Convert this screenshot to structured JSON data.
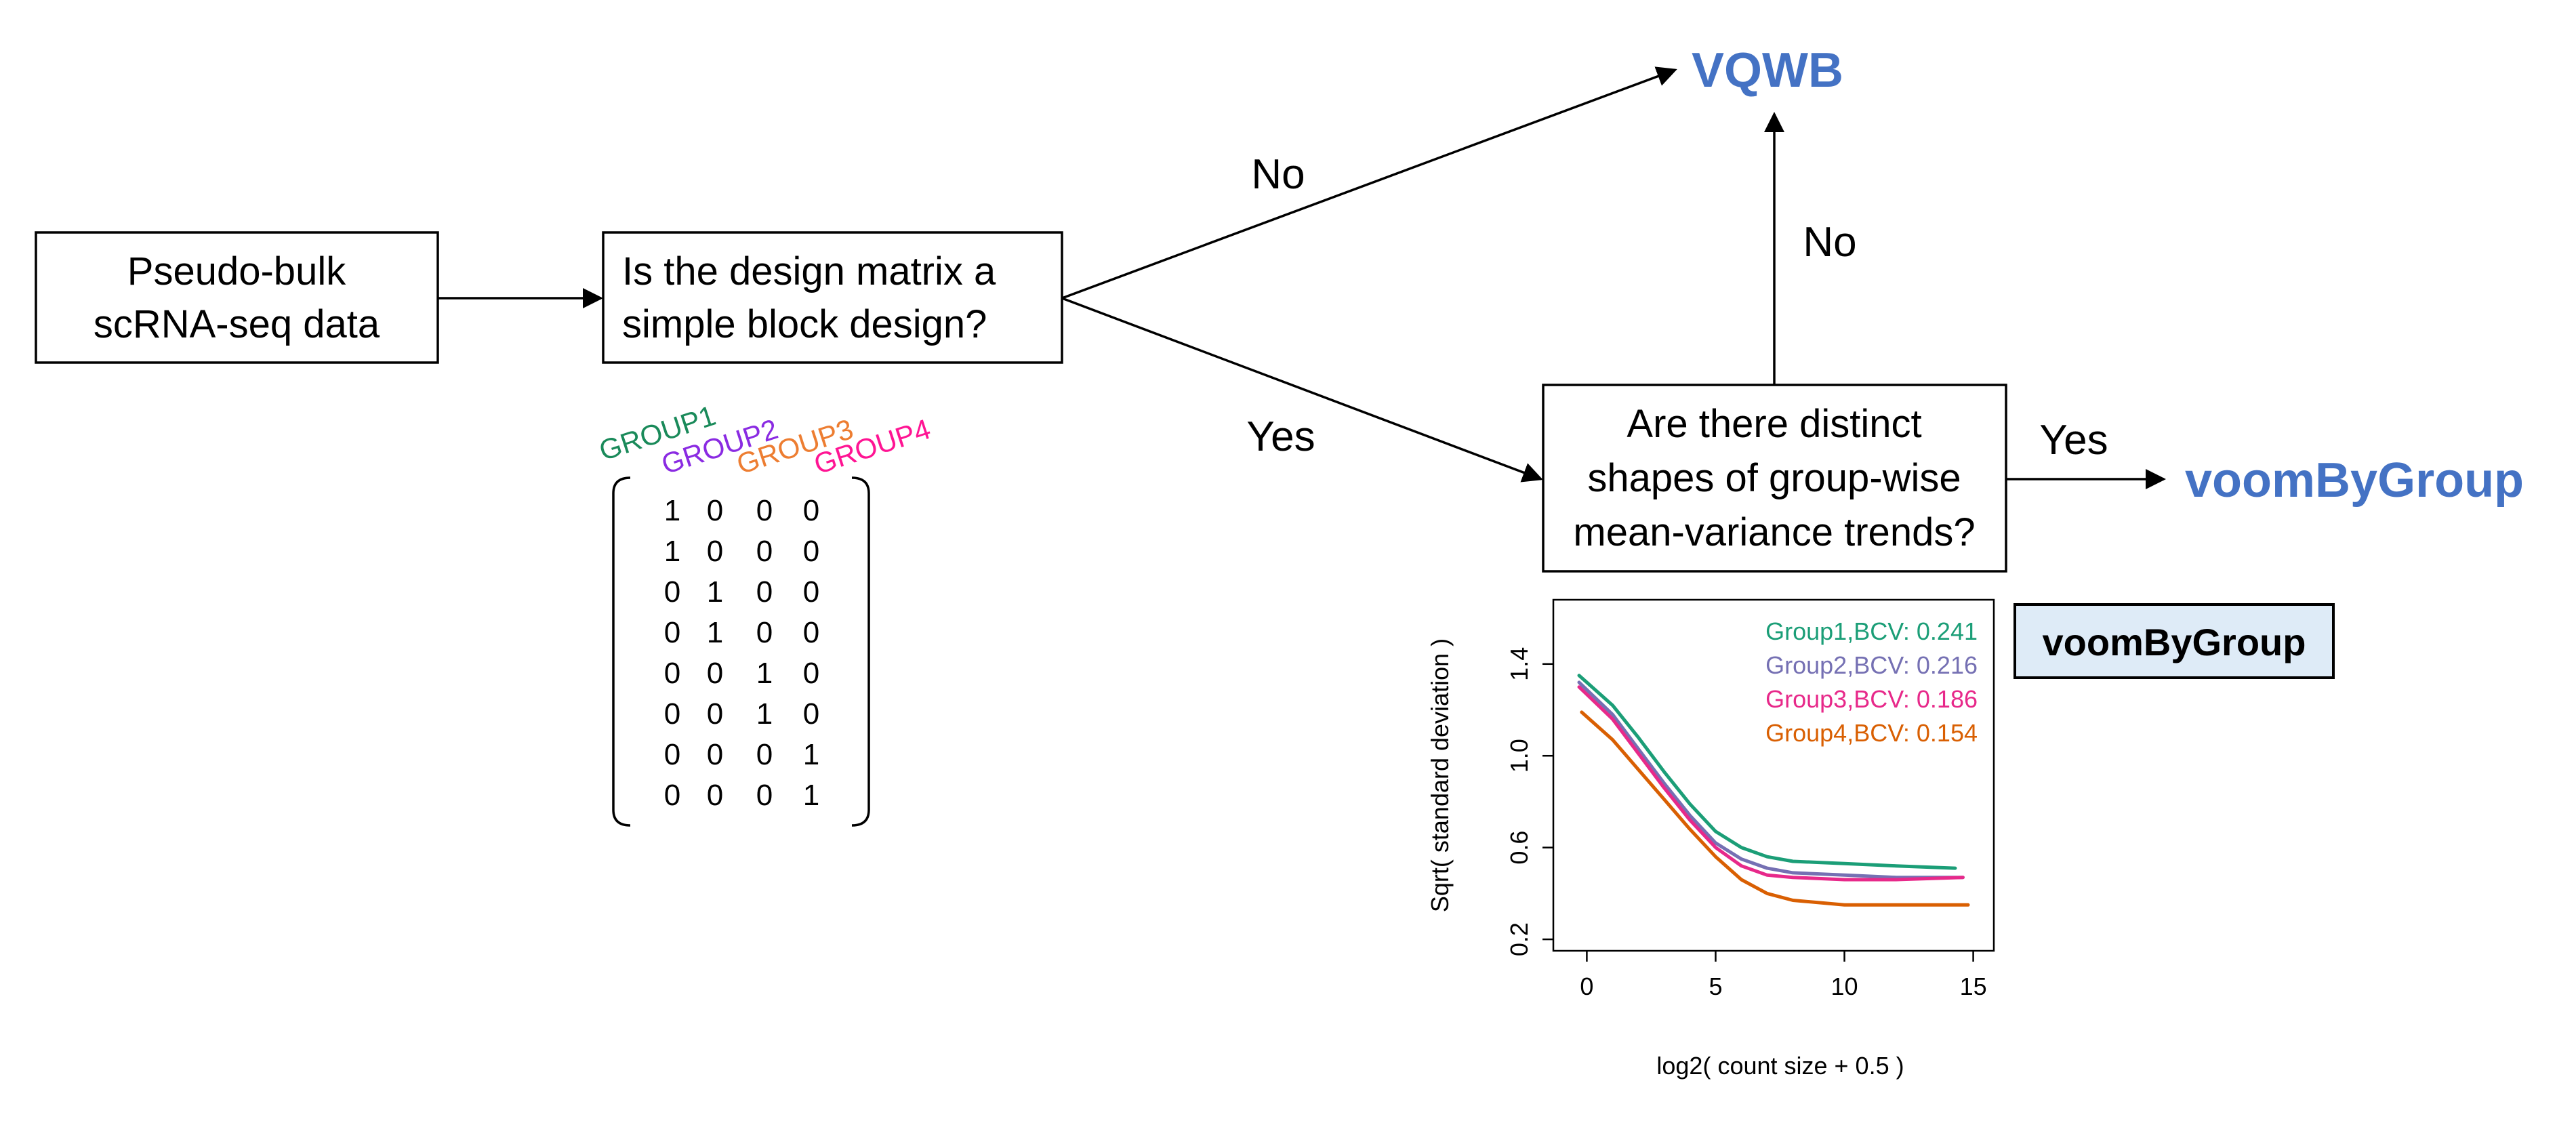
{
  "flow": {
    "start_box": [
      "Pseudo-bulk",
      "scRNA-seq data"
    ],
    "question1_box": [
      "Is the design matrix a",
      "simple block design?"
    ],
    "question2_box": [
      "Are there distinct",
      "shapes of group-wise",
      "mean-variance trends?"
    ],
    "edge_no_top": "No",
    "edge_yes_down": "Yes",
    "edge_no_up": "No",
    "edge_yes_right": "Yes",
    "outcome_top": "VQWB",
    "outcome_right": "voomByGroup"
  },
  "design_matrix": {
    "group_labels": [
      "GROUP1",
      "GROUP2",
      "GROUP3",
      "GROUP4"
    ],
    "group_colors": [
      "#1A8A5A",
      "#8A2BE2",
      "#ED7D31",
      "#FF1493"
    ],
    "rows": [
      [
        "1",
        "0",
        "0",
        "0"
      ],
      [
        "1",
        "0",
        "0",
        "0"
      ],
      [
        "0",
        "1",
        "0",
        "0"
      ],
      [
        "0",
        "1",
        "0",
        "0"
      ],
      [
        "0",
        "0",
        "1",
        "0"
      ],
      [
        "0",
        "0",
        "1",
        "0"
      ],
      [
        "0",
        "0",
        "0",
        "1"
      ],
      [
        "0",
        "0",
        "0",
        "1"
      ]
    ]
  },
  "badge": {
    "label": "voomByGroup",
    "fill": "#DEEBF7"
  },
  "chart_data": {
    "type": "line",
    "xlabel": "log2( count size + 0.5 )",
    "ylabel": "Sqrt( standard deviation )",
    "xlim": [
      -1.3,
      15.8
    ],
    "ylim": [
      0.15,
      1.68
    ],
    "xticks": [
      0,
      5,
      10,
      15
    ],
    "yticks": [
      0.2,
      0.6,
      1.0,
      1.4
    ],
    "ytick_labels": [
      "0.2",
      "0.6",
      "1.0",
      "1.4"
    ],
    "legend_placement": "top-right",
    "grid": false,
    "series": [
      {
        "name": "Group1,BCV: 0.241",
        "legend_name": "Group1,BCV:",
        "legend_value": "0.241",
        "color": "#1B9E77",
        "x": [
          -0.3,
          1,
          2,
          3,
          4,
          5,
          6,
          7,
          8,
          10,
          12,
          14.3
        ],
        "y": [
          1.35,
          1.22,
          1.08,
          0.93,
          0.79,
          0.67,
          0.6,
          0.56,
          0.54,
          0.53,
          0.52,
          0.51
        ]
      },
      {
        "name": "Group2,BCV: 0.216",
        "legend_name": "Group2,BCV:",
        "legend_value": "0.216",
        "color": "#7570B3",
        "x": [
          -0.3,
          1,
          2,
          3,
          4,
          5,
          6,
          7,
          8,
          10,
          12,
          14.6
        ],
        "y": [
          1.32,
          1.18,
          1.03,
          0.88,
          0.74,
          0.62,
          0.55,
          0.51,
          0.49,
          0.48,
          0.47,
          0.47
        ]
      },
      {
        "name": "Group3,BCV: 0.186",
        "legend_name": "Group3,BCV:",
        "legend_value": "0.186",
        "color": "#E7298A",
        "x": [
          -0.3,
          1,
          2,
          3,
          4,
          5,
          6,
          7,
          8,
          10,
          12,
          14.6
        ],
        "y": [
          1.3,
          1.16,
          1.01,
          0.86,
          0.72,
          0.6,
          0.52,
          0.48,
          0.47,
          0.46,
          0.46,
          0.47
        ]
      },
      {
        "name": "Group4,BCV: 0.154",
        "legend_name": "Group4,BCV:",
        "legend_value": "0.154",
        "color": "#D95F02",
        "x": [
          -0.2,
          1,
          2,
          3,
          4,
          5,
          6,
          7,
          8,
          10,
          12,
          14.8
        ],
        "y": [
          1.19,
          1.07,
          0.94,
          0.81,
          0.68,
          0.56,
          0.46,
          0.4,
          0.37,
          0.35,
          0.35,
          0.35
        ]
      }
    ]
  }
}
